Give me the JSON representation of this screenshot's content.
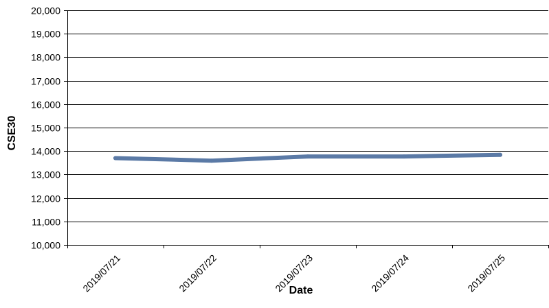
{
  "chart_data": {
    "type": "line",
    "title": "",
    "xlabel": "Date",
    "ylabel": "CSE30",
    "categories": [
      "2019/07/21",
      "2019/07/22",
      "2019/07/23",
      "2019/07/24",
      "2019/07/25"
    ],
    "series": [
      {
        "values": [
          13700,
          13590,
          13770,
          13770,
          13840
        ],
        "color": "#5b7aa6"
      }
    ],
    "ylim": [
      10000,
      20000
    ],
    "y_ticks": [
      10000,
      11000,
      12000,
      13000,
      14000,
      15000,
      16000,
      17000,
      18000,
      19000,
      20000
    ],
    "y_tick_labels": [
      "10,000",
      "11,000",
      "12,000",
      "13,000",
      "14,000",
      "15,000",
      "16,000",
      "17,000",
      "18,000",
      "19,000",
      "20,000"
    ],
    "grid": true,
    "legend": "none"
  }
}
